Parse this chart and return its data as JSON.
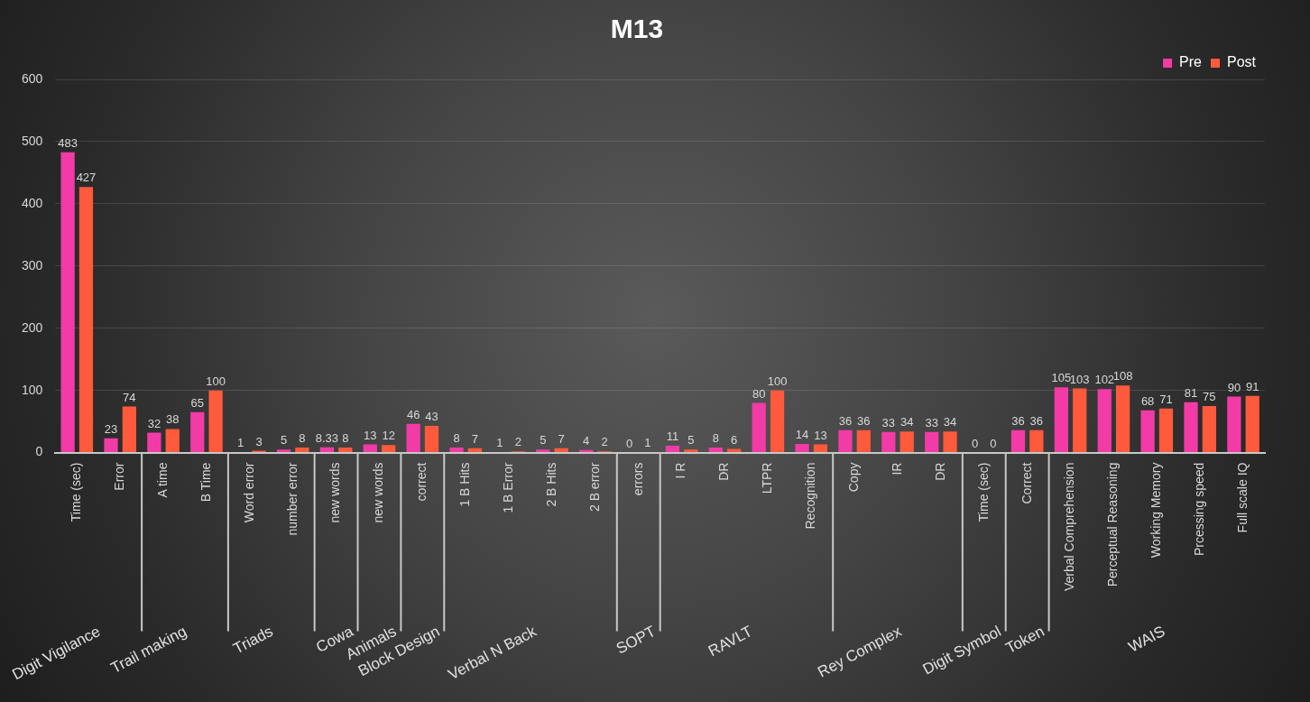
{
  "chart_data": {
    "type": "bar",
    "title": "M13",
    "categories": [
      "Time (sec)",
      "Error",
      "A time",
      "B Time",
      "Word error",
      "number error",
      "new words",
      "new words",
      "correct",
      "1 B Hits",
      "1 B Error",
      "2 B Hits",
      "2 B error",
      "errors",
      "I R",
      "DR",
      "LTPR",
      "Recognition",
      "Copy",
      "IR",
      "DR",
      "Time (sec)",
      "Correct",
      "Verbal Comprehension",
      "Perceptual Reasoning",
      "Working Memory",
      "Prcessing speed",
      "Full scale IQ"
    ],
    "series": [
      {
        "name": "Pre",
        "color": "#f23ba6",
        "values": [
          483,
          23,
          32,
          65,
          1,
          5,
          8.33,
          13,
          46,
          8,
          1,
          5,
          4,
          0,
          11,
          8,
          80,
          14,
          36,
          33,
          33,
          0,
          36,
          105,
          102,
          68,
          81,
          90
        ]
      },
      {
        "name": "Post",
        "color": "#ff5a3c",
        "values": [
          427,
          74,
          38,
          100,
          3,
          8,
          8,
          12,
          43,
          7,
          2,
          7,
          2,
          1,
          5,
          6,
          100,
          13,
          36,
          34,
          34,
          0,
          36,
          103,
          108,
          71,
          75,
          91
        ]
      }
    ],
    "ylim": [
      0,
      600
    ],
    "yticks": [
      0,
      100,
      200,
      300,
      400,
      500,
      600
    ],
    "grid": "y",
    "legend": "top right",
    "data_labels": true,
    "annotations": [
      "Digit Vigilance",
      "Trail making",
      "Triads",
      "Cowa",
      "Animals",
      "Block Design",
      "Verbal N Back",
      "SOPT",
      "RAVLT",
      "Rey Complex",
      "Digit Symbol",
      "Token",
      "WAIS"
    ]
  }
}
